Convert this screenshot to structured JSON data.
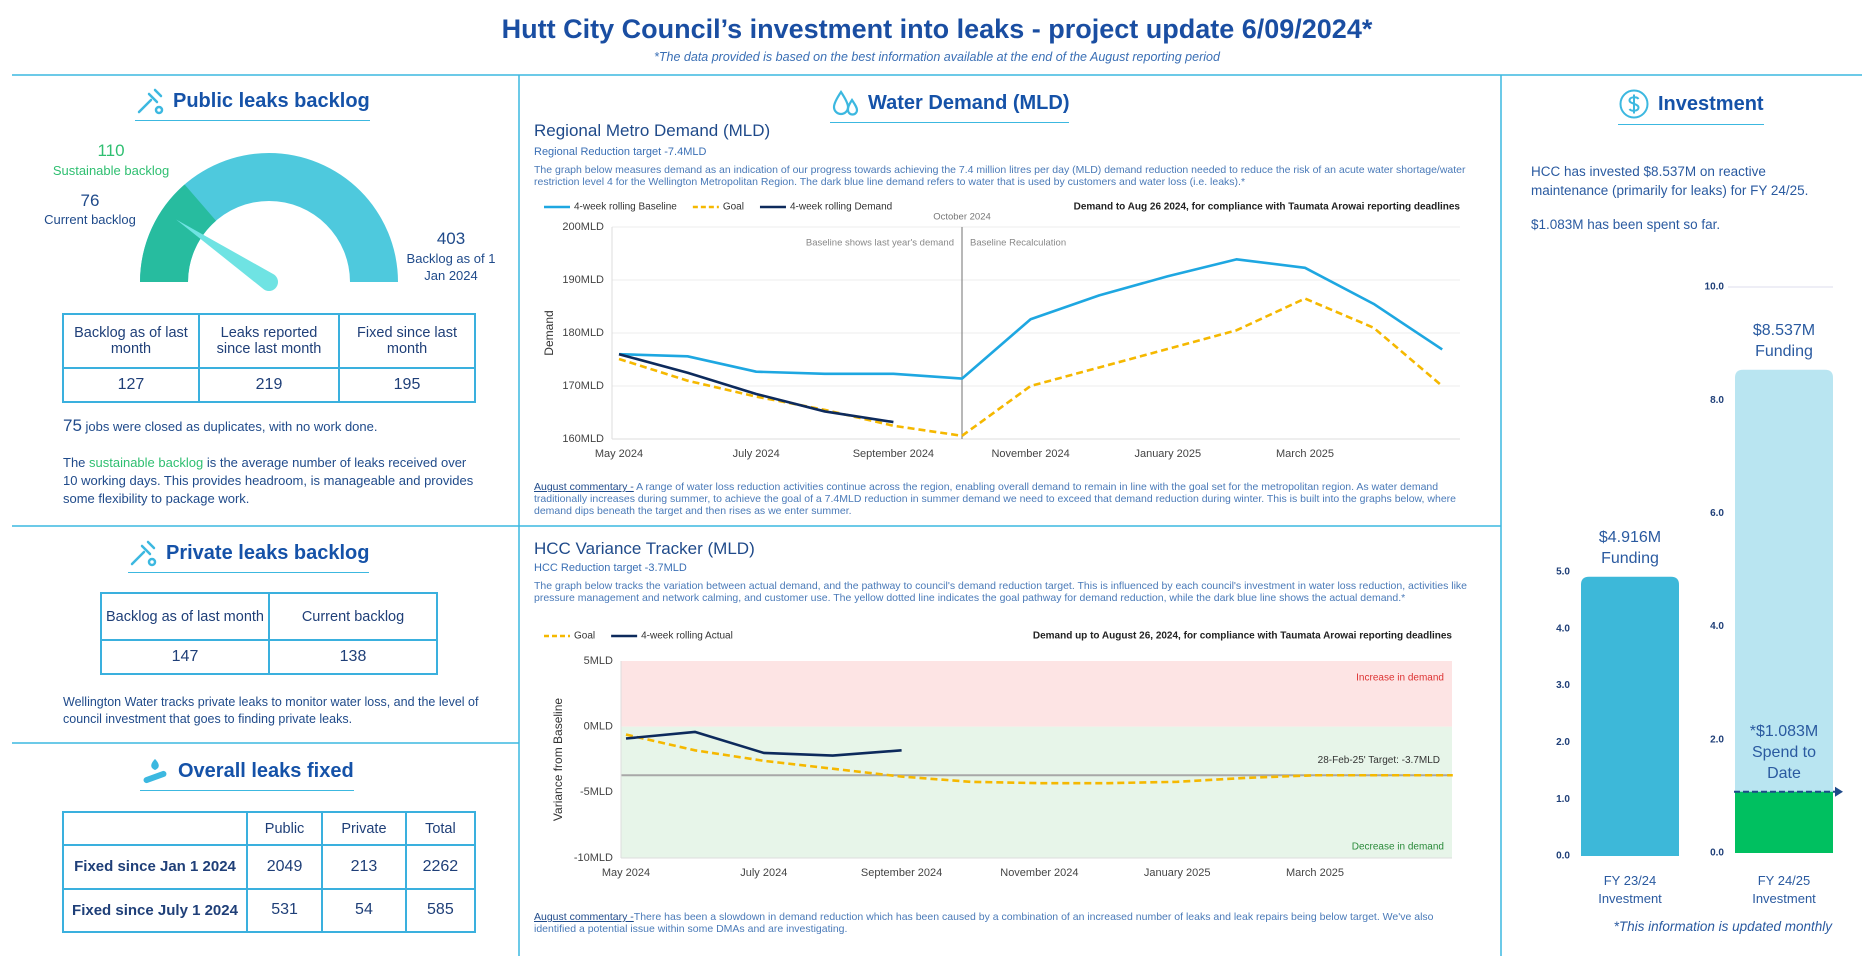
{
  "header": {
    "title": "Hutt City Council’s investment into leaks - project update 6/09/2024*",
    "subtitle": "*The data provided is based on the best information available at the end of the August reporting period"
  },
  "public_leaks": {
    "title": "Public leaks backlog",
    "gauge": {
      "sustainable": 110,
      "sustainable_label": "Sustainable backlog",
      "current": 76,
      "current_label": "Current backlog",
      "max": 403,
      "max_label": "Backlog as of 1 Jan 2024"
    },
    "table": {
      "headers": [
        "Backlog as of last month",
        "Leaks reported since last month",
        "Fixed since last month"
      ],
      "values": [
        127,
        219,
        195
      ]
    },
    "duplicates": 75,
    "duplicates_text": "jobs were closed as duplicates, with no work done.",
    "note": [
      "The ",
      "sustainable backlog",
      " is the average number of leaks received over 10 working days. This provides headroom, is manageable and provides some flexibility to package work."
    ]
  },
  "private_leaks": {
    "title": "Private leaks backlog",
    "table": {
      "headers": [
        "Backlog as of last month",
        "Current backlog"
      ],
      "values": [
        147,
        138
      ]
    },
    "note": "Wellington Water tracks private leaks to monitor water loss, and the level of council investment that goes to finding private leaks."
  },
  "overall_leaks": {
    "title": "Overall leaks fixed",
    "columns": [
      "Public",
      "Private",
      "Total"
    ],
    "rows": [
      {
        "label": "Fixed since Jan 1 2024",
        "values": [
          2049,
          213,
          2262
        ]
      },
      {
        "label": "Fixed since July 1 2024",
        "values": [
          531,
          54,
          585
        ]
      }
    ]
  },
  "water_demand": {
    "title": "Water Demand (MLD)"
  },
  "investment": {
    "title": "Investment",
    "text": [
      "HCC has invested $8.537M on reactive maintenance (primarily for leaks) for FY 24/25.",
      "$1.083M has been spent so far."
    ],
    "footnote": "*This information is updated monthly"
  },
  "chart_data": [
    {
      "type": "line",
      "title": "Regional Metro Demand (MLD)",
      "subtitle": "Regional Reduction target -7.4MLD",
      "description": "The graph below measures demand as an indication of our progress towards achieving the 7.4 million litres per day (MLD) demand reduction needed to reduce the risk of an acute water shortage/water restriction level 4 for the Wellington Metropolitan Region. The dark blue line demand refers to water that is used by customers and water loss (i.e. leaks).*",
      "ylabel": "Demand",
      "categories": [
        "May 2024",
        null,
        "July 2024",
        null,
        "September 2024",
        null,
        "November 2024",
        null,
        "January 2025",
        null,
        "March 2025",
        null,
        null
      ],
      "series": [
        {
          "name": "4-week rolling Baseline",
          "color": "#1ea7e1",
          "values": [
            176.0,
            175.6,
            172.7,
            172.3,
            172.3,
            171.4,
            182.6,
            187.1,
            190.7,
            193.9,
            192.3,
            185.5,
            176.9
          ]
        },
        {
          "name": "Goal",
          "color": "#f5b800",
          "dashed": true,
          "values": [
            175.1,
            171.0,
            168.0,
            165.5,
            162.5,
            160.6,
            170.0,
            173.5,
            177.0,
            180.5,
            186.5,
            181.0,
            170.0
          ]
        },
        {
          "name": "4-week rolling Demand",
          "color": "#0d2a5c",
          "values": [
            176.0,
            172.5,
            168.5,
            165.2,
            163.2,
            null,
            null,
            null,
            null,
            null,
            null,
            null,
            null
          ]
        }
      ],
      "ylim": [
        160,
        200
      ],
      "yticks": [
        {
          "value": 160,
          "label": "160MLD"
        },
        {
          "value": 170,
          "label": "170MLD"
        },
        {
          "value": 180,
          "label": "180MLD"
        },
        {
          "value": 190,
          "label": "190MLD"
        },
        {
          "value": 200,
          "label": "200MLD"
        }
      ],
      "grid": true,
      "annotations": {
        "marker": "October 2024",
        "left": "Baseline shows last year's demand",
        "right": "Baseline Recalculation",
        "note": "Demand to Aug 26 2024, for compliance with Taumata Arowai reporting deadlines"
      },
      "commentary_label": "August commentary -",
      "commentary": " A range of water loss reduction activities continue across the region, enabling overall demand to remain in line with the goal set for the metropolitan region. As water demand traditionally increases during summer, to achieve the goal of a 7.4MLD reduction in summer demand we need to exceed that demand reduction during winter. This is built into the graphs below, where demand dips beneath the target and then rises as we enter summer."
    },
    {
      "type": "line",
      "title": "HCC Variance Tracker (MLD)",
      "subtitle": "HCC Reduction target -3.7MLD",
      "description": "The graph below tracks the variation between actual demand, and the pathway to council's demand reduction target. This is influenced by each council's investment in water loss reduction, activities like pressure management and network calming, and customer use. The yellow dotted line indicates the goal pathway for demand reduction, while the dark blue line shows the actual demand.*",
      "ylabel": "Variance from Baseline",
      "categories": [
        "May 2024",
        null,
        "July 2024",
        null,
        "September 2024",
        null,
        "November 2024",
        null,
        "January 2025",
        null,
        "March 2025",
        null,
        null
      ],
      "series": [
        {
          "name": "Goal",
          "color": "#f5b800",
          "dashed": true,
          "values": [
            -0.6,
            -1.8,
            -2.6,
            -3.2,
            -3.8,
            -4.2,
            -4.3,
            -4.3,
            -4.2,
            -3.9,
            -3.7,
            -3.7,
            -3.7
          ]
        },
        {
          "name": "4-week rolling Actual",
          "color": "#0d2a5c",
          "values": [
            -0.9,
            -0.4,
            -2.0,
            -2.2,
            -1.8,
            null,
            null,
            null,
            null,
            null,
            null,
            null,
            null
          ]
        }
      ],
      "ylim": [
        -10,
        5
      ],
      "yticks": [
        {
          "value": 5,
          "label": "5MLD"
        },
        {
          "value": 0,
          "label": "0MLD"
        },
        {
          "value": -5,
          "label": "-5MLD"
        },
        {
          "value": -10,
          "label": "-10MLD"
        }
      ],
      "target": -3.7,
      "target_label": "28-Feb-25' Target: -3.7MLD",
      "annotations": {
        "increase": "Increase in demand",
        "decrease": "Decrease in demand",
        "note": "Demand up to August 26, 2024, for compliance with Taumata Arowai reporting deadlines"
      },
      "commentary_label": "August commentary -",
      "commentary": "There has been a slowdown in demand reduction which has been caused by a combination of an increased number of leaks and leak repairs being below target. We've also identified a potential issue within some DMAs and are investigating."
    },
    {
      "type": "bar",
      "categories": [
        "FY 23/24 Investment",
        "FY 24/25 Investment"
      ],
      "series": [
        {
          "color": "#3db8d9",
          "values": [
            4.916,
            null
          ],
          "value_labels": [
            "$4.916M Funding",
            null
          ]
        },
        {
          "color": "#b9e5f1",
          "axis": "y2",
          "values": [
            null,
            8.537
          ],
          "value_labels": [
            null,
            "$8.537M Funding"
          ]
        },
        {
          "color": "#00c060",
          "axis": "y2",
          "values": [
            null,
            1.083
          ],
          "value_labels": [
            null,
            "*$1.083M Spend to Date"
          ]
        }
      ],
      "ylim": [
        0,
        5
      ],
      "yticks": [
        {
          "value": 0,
          "label": "0.0"
        },
        {
          "value": 1,
          "label": "1.0"
        },
        {
          "value": 2,
          "label": "2.0"
        },
        {
          "value": 3,
          "label": "3.0"
        },
        {
          "value": 4,
          "label": "4.0"
        },
        {
          "value": 5,
          "label": "5.0"
        }
      ],
      "y2lim": [
        0,
        10
      ],
      "y2ticks": [
        {
          "value": 0,
          "label": "0.0"
        },
        {
          "value": 2,
          "label": "2.0"
        },
        {
          "value": 4,
          "label": "4.0"
        },
        {
          "value": 6,
          "label": "6.0"
        },
        {
          "value": 8,
          "label": "8.0"
        },
        {
          "value": 10,
          "label": "10.0"
        }
      ]
    }
  ]
}
